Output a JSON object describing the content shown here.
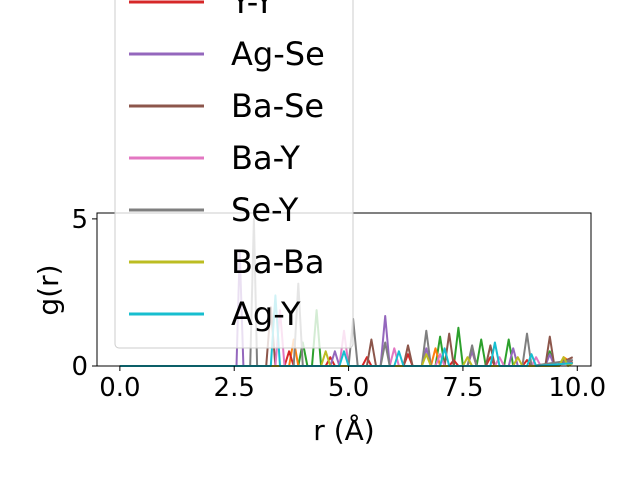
{
  "chart_data": {
    "type": "line",
    "xlabel": "r (Å)",
    "ylabel": "g(r)",
    "xlim": [
      -0.5,
      10.3
    ],
    "ylim": [
      0,
      5.2
    ],
    "xticks": [
      {
        "value": 0.0,
        "label": "0.0"
      },
      {
        "value": 2.5,
        "label": "2.5"
      },
      {
        "value": 5.0,
        "label": "5.0"
      },
      {
        "value": 7.5,
        "label": "7.5"
      },
      {
        "value": 10.0,
        "label": "10.0"
      }
    ],
    "yticks": [
      {
        "value": 0,
        "label": "0"
      },
      {
        "value": 5,
        "label": "5"
      }
    ],
    "legend_position": "upper-left, overflowing above the axes",
    "series": [
      {
        "name": "Y-Y",
        "color": "#d62728",
        "x": [
          0,
          2.5,
          3.6,
          3.7,
          3.8,
          4.5,
          4.6,
          4.7,
          5.3,
          5.4,
          5.5,
          6.2,
          6.3,
          6.4,
          7.2,
          7.3,
          7.4,
          8.0,
          8.1,
          8.2,
          8.8,
          8.9,
          9.0,
          9.6,
          9.7,
          9.9
        ],
        "y": [
          0,
          0,
          0,
          0.5,
          0,
          0,
          0.3,
          0,
          0,
          0.3,
          0,
          0,
          0.4,
          0,
          0,
          0.2,
          0,
          0,
          0.3,
          0,
          0,
          0.2,
          0,
          0,
          0.2,
          0.1
        ]
      },
      {
        "name": "Ag-Se",
        "color": "#9467bd",
        "x": [
          0,
          2.5,
          2.55,
          2.62,
          2.7,
          4.6,
          4.7,
          4.8,
          5.7,
          5.8,
          5.9,
          6.6,
          6.7,
          6.8,
          7.6,
          7.7,
          7.8,
          8.5,
          8.6,
          8.7,
          9.3,
          9.4,
          9.5,
          9.9
        ],
        "y": [
          0,
          0,
          0,
          3.9,
          0,
          0,
          0.5,
          0,
          0,
          1.7,
          0,
          0,
          0.6,
          0,
          0,
          0.5,
          0,
          0,
          0.6,
          0,
          0,
          0.4,
          0,
          0.2
        ]
      },
      {
        "name": "Ba-Se",
        "color": "#8c564b",
        "x": [
          0,
          3.1,
          3.2,
          3.3,
          3.4,
          5.4,
          5.5,
          5.6,
          6.2,
          6.3,
          6.4,
          7.1,
          7.2,
          7.3,
          8.0,
          8.1,
          8.2,
          9.3,
          9.4,
          9.5,
          9.9
        ],
        "y": [
          0,
          0,
          0,
          2.0,
          0,
          0,
          0.9,
          0,
          0,
          0.7,
          0,
          0,
          1.1,
          0,
          0,
          0.7,
          0,
          0,
          1.0,
          0,
          0.3
        ]
      },
      {
        "name": "Ba-Y",
        "color": "#e377c2",
        "x": [
          0,
          3.3,
          3.4,
          3.5,
          3.6,
          4.8,
          4.9,
          5.0,
          5.9,
          6.0,
          6.1,
          6.9,
          7.0,
          7.1,
          8.2,
          8.3,
          8.4,
          9.0,
          9.1,
          9.2,
          9.9
        ],
        "y": [
          0,
          0,
          0,
          1.9,
          0,
          0,
          1.2,
          0,
          0,
          0.6,
          0,
          0,
          0.4,
          0,
          0,
          0.3,
          0,
          0,
          0.3,
          0,
          0.1
        ]
      },
      {
        "name": "Se-Y",
        "color": "#7f7f7f",
        "x": [
          0,
          2.8,
          2.85,
          2.93,
          3.0,
          3.8,
          3.9,
          4.0,
          5.0,
          5.1,
          5.2,
          5.7,
          5.8,
          5.9,
          6.6,
          6.7,
          6.8,
          7.6,
          7.7,
          7.8,
          8.8,
          8.9,
          9.0,
          9.9
        ],
        "y": [
          0,
          0,
          0,
          5.0,
          0,
          0,
          2.8,
          0,
          0,
          1.6,
          0,
          0,
          0.8,
          0,
          0,
          1.2,
          0,
          0,
          0.7,
          0,
          0,
          1.1,
          0,
          0.2
        ]
      },
      {
        "name": "Ba-Ba",
        "color": "#bcbd22",
        "x": [
          0,
          4.3,
          4.4,
          4.5,
          4.6,
          6.6,
          6.7,
          6.8,
          7.5,
          7.6,
          7.7,
          8.6,
          8.7,
          8.8,
          9.6,
          9.7,
          9.8,
          9.9
        ],
        "y": [
          0,
          0,
          0,
          0.5,
          0,
          0,
          0.4,
          0,
          0,
          0.3,
          0,
          0,
          0.3,
          0,
          0,
          0.3,
          0,
          0.1
        ]
      },
      {
        "name": "Ag-Y",
        "color": "#17becf",
        "x": [
          0,
          3.2,
          3.3,
          3.4,
          3.5,
          4.8,
          4.9,
          5.0,
          6.0,
          6.1,
          6.2,
          7.0,
          7.1,
          7.2,
          8.1,
          8.2,
          8.3,
          8.9,
          9.0,
          9.1,
          9.9
        ],
        "y": [
          0,
          0,
          0,
          2.4,
          0,
          0,
          0.5,
          0,
          0,
          0.5,
          0,
          0,
          0.6,
          0,
          0,
          0.8,
          0,
          0,
          0.4,
          0,
          0.1
        ]
      }
    ],
    "extra_lines": [
      {
        "color": "#2ca02c",
        "x": [
          0,
          3.8,
          3.9,
          4.0,
          4.1,
          4.2,
          4.3,
          4.4,
          4.5,
          6.9,
          7.0,
          7.1,
          7.3,
          7.4,
          7.5,
          7.8,
          7.9,
          8.0,
          8.4,
          8.5,
          8.6,
          9.3,
          9.4,
          9.5,
          9.9
        ],
        "y": [
          0,
          0,
          0,
          0.8,
          0,
          0,
          1.9,
          0,
          0,
          0,
          1.0,
          0,
          0,
          1.3,
          0,
          0,
          0.9,
          0,
          0,
          0.9,
          0,
          0,
          0.5,
          0,
          0.2
        ]
      },
      {
        "color": "#ff7f0e",
        "x": [
          0,
          3.6,
          3.7,
          3.8,
          3.9,
          6.8,
          6.9,
          7.0,
          7.6,
          7.7,
          7.8,
          9.6,
          9.7,
          9.9
        ],
        "y": [
          0,
          0,
          0,
          0.9,
          0,
          0,
          0.6,
          0,
          0,
          0.5,
          0,
          0,
          0.3,
          0.1
        ]
      }
    ]
  }
}
